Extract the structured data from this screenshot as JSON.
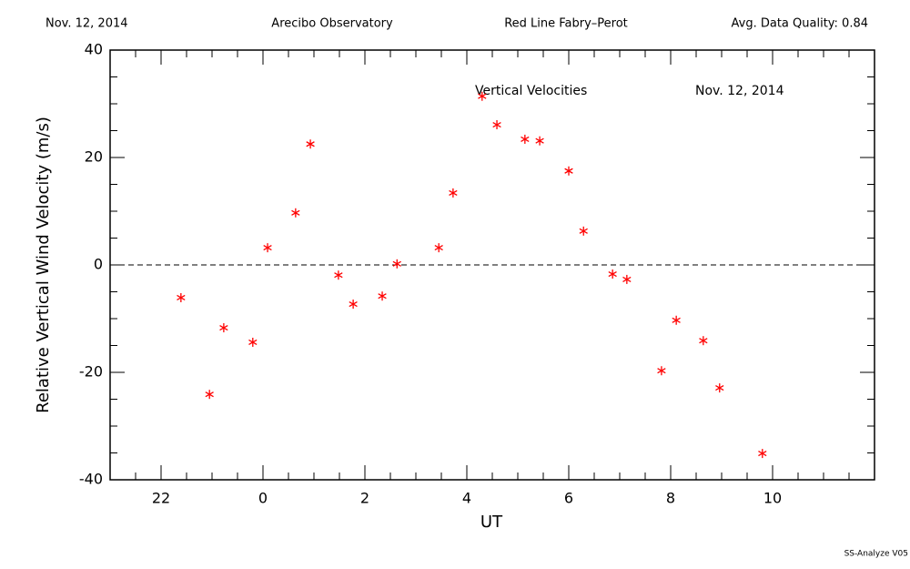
{
  "chart_data": {
    "type": "scatter",
    "header": [
      "Nov. 12, 2014",
      "Arecibo Observatory",
      "Red Line Fabry–Perot",
      "Avg. Data Quality: 0.84"
    ],
    "annotations": [
      "Vertical Velocities",
      "Nov. 12, 2014"
    ],
    "footer": "SS-Analyze V05",
    "x_label": "UT",
    "y_label": "Relative Vertical Wind Velocity (m/s)",
    "xlim": [
      21,
      36
    ],
    "ylim": [
      -40,
      40
    ],
    "xticks": [
      22,
      {
        "value": 24,
        "label": "0"
      },
      {
        "value": 26,
        "label": "2"
      },
      {
        "value": 28,
        "label": "4"
      },
      {
        "value": 30,
        "label": "6"
      },
      {
        "value": 32,
        "label": "8"
      },
      {
        "value": 34,
        "label": "10"
      }
    ],
    "xminorticks": [
      21.5,
      22.5,
      23,
      23.5,
      24.5,
      25,
      25.5,
      26.5,
      27,
      27.5,
      28.5,
      29,
      29.5,
      30.5,
      31,
      31.5,
      32.5,
      33,
      33.5,
      34.5,
      35,
      35.5
    ],
    "yticks": [
      -40,
      -20,
      0,
      20,
      40
    ],
    "yminorticks": [
      -35,
      -30,
      -25,
      -15,
      -10,
      -5,
      5,
      10,
      15,
      25,
      30,
      35
    ],
    "hline": 0,
    "series": [
      {
        "color": "#ff0000",
        "x": [
          22.39,
          22.95,
          23.23,
          23.8,
          24.09,
          24.64,
          24.93,
          25.48,
          25.77,
          26.34,
          26.63,
          27.45,
          27.73,
          28.3,
          28.59,
          29.14,
          29.43,
          30.0,
          30.29,
          30.86,
          31.14,
          31.82,
          32.11,
          32.64,
          32.96,
          33.8
        ],
        "values": [
          -6.1,
          -24.1,
          -11.7,
          -14.4,
          3.2,
          9.7,
          22.5,
          -1.9,
          -7.3,
          -5.8,
          0.2,
          3.2,
          13.4,
          31.4,
          26.1,
          23.4,
          23.1,
          17.5,
          6.3,
          -1.7,
          -2.7,
          -19.7,
          -10.3,
          -14.1,
          -22.9,
          -35.1
        ]
      }
    ]
  }
}
